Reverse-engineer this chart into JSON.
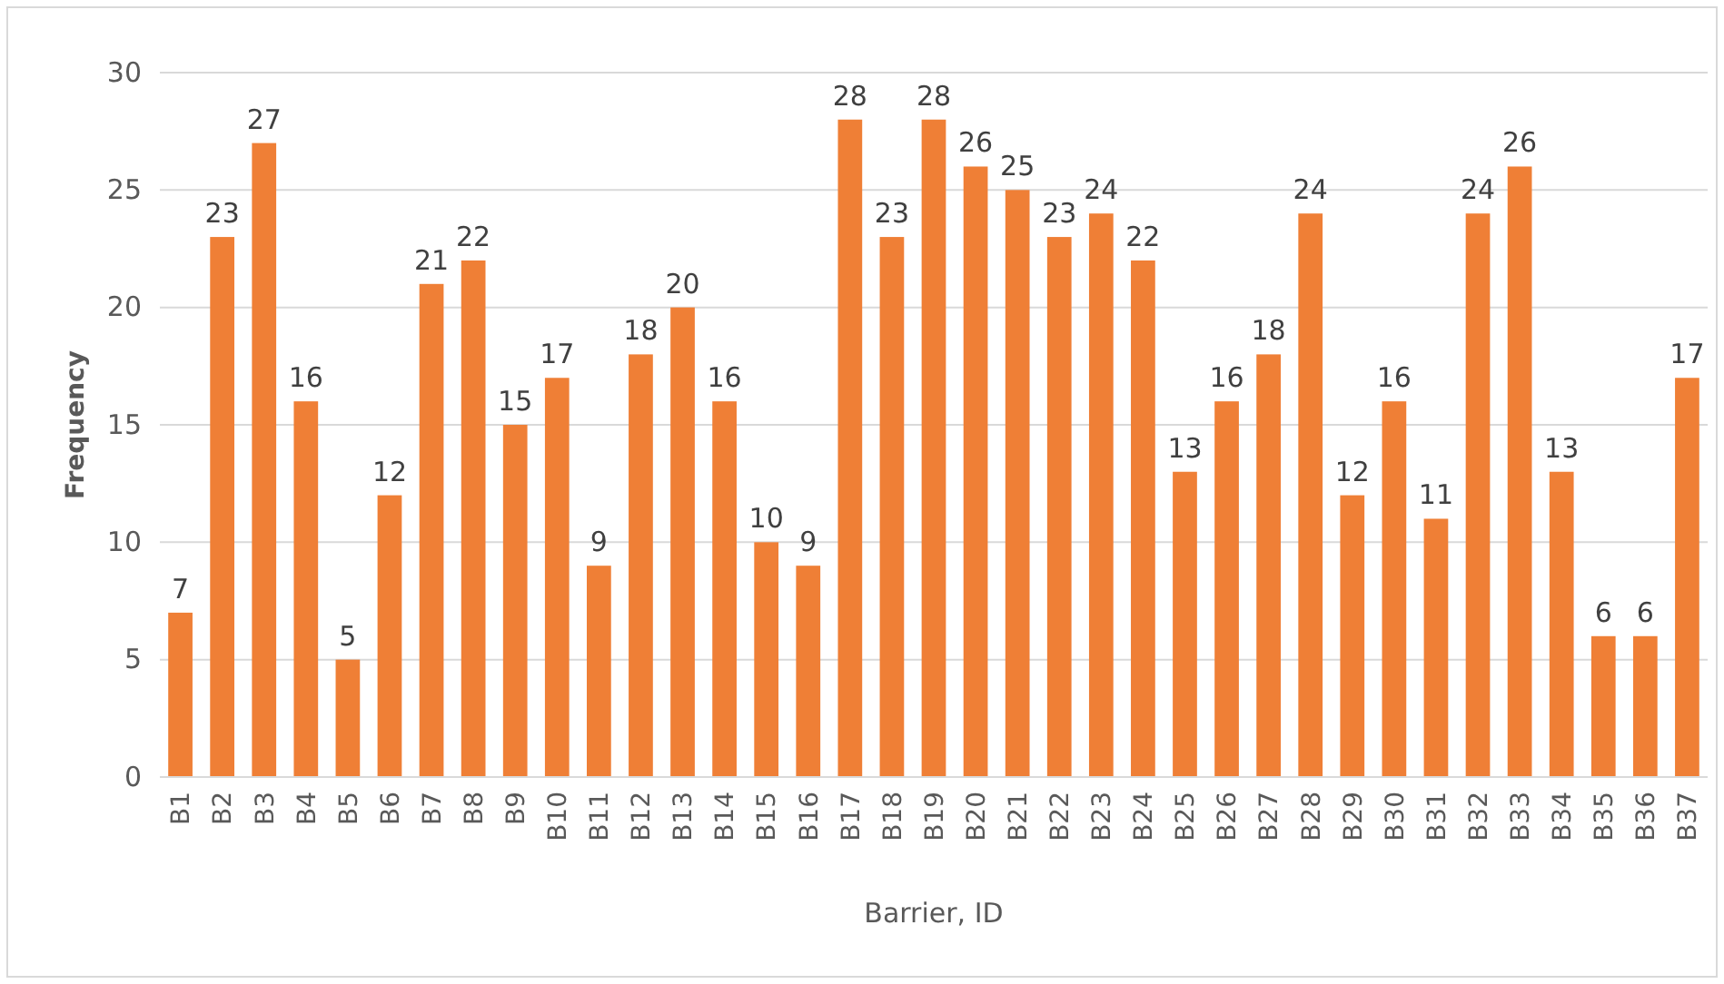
{
  "chart_data": {
    "type": "bar",
    "xlabel": "Barrier, ID",
    "ylabel": "Frequency",
    "categories": [
      "B1",
      "B2",
      "B3",
      "B4",
      "B5",
      "B6",
      "B7",
      "B8",
      "B9",
      "B10",
      "B11",
      "B12",
      "B13",
      "B14",
      "B15",
      "B16",
      "B17",
      "B18",
      "B19",
      "B20",
      "B21",
      "B22",
      "B23",
      "B24",
      "B25",
      "B26",
      "B27",
      "B28",
      "B29",
      "B30",
      "B31",
      "B32",
      "B33",
      "B34",
      "B35",
      "B36",
      "B37"
    ],
    "values": [
      7,
      23,
      27,
      16,
      5,
      12,
      21,
      22,
      15,
      17,
      9,
      18,
      20,
      16,
      10,
      9,
      28,
      23,
      28,
      26,
      25,
      23,
      24,
      22,
      13,
      16,
      18,
      24,
      12,
      16,
      11,
      24,
      26,
      13,
      6,
      6,
      17
    ],
    "color": "#ef7f36",
    "ylim": [
      0,
      30
    ],
    "yticks": [
      0,
      5,
      10,
      15,
      20,
      25,
      30
    ],
    "grid": "y",
    "data_labels": true
  }
}
